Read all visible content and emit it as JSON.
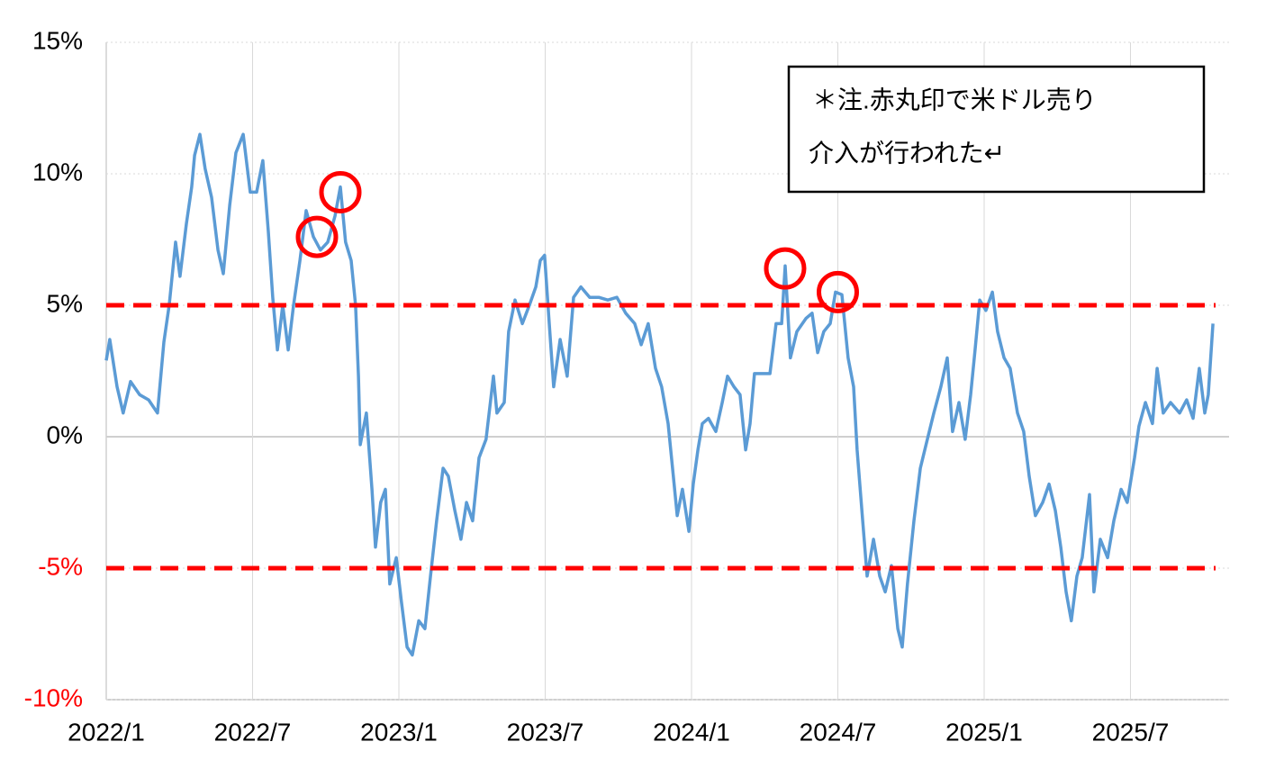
{
  "chart_data": {
    "type": "line",
    "color": "#5b9bd5",
    "x": [
      2022.0,
      2022.012,
      2022.037,
      2022.058,
      2022.083,
      2022.114,
      2022.145,
      2022.175,
      2022.197,
      2022.215,
      2022.237,
      2022.252,
      2022.274,
      2022.292,
      2022.302,
      2022.32,
      2022.338,
      2022.36,
      2022.382,
      2022.4,
      2022.422,
      2022.443,
      2022.468,
      2022.492,
      2022.514,
      2022.535,
      2022.554,
      2022.569,
      2022.585,
      2022.603,
      2022.622,
      2022.64,
      2022.662,
      2022.683,
      2022.708,
      2022.732,
      2022.757,
      2022.782,
      2022.8,
      2022.818,
      2022.837,
      2022.852,
      2022.862,
      2022.868,
      2022.889,
      2022.908,
      2022.92,
      2022.938,
      2022.954,
      2022.969,
      2022.991,
      2023.009,
      2023.028,
      2023.046,
      2023.068,
      2023.089,
      2023.108,
      2023.129,
      2023.151,
      2023.169,
      2023.191,
      2023.212,
      2023.231,
      2023.252,
      2023.274,
      2023.298,
      2023.323,
      2023.335,
      2023.36,
      2023.375,
      2023.397,
      2023.422,
      2023.446,
      2023.468,
      2023.483,
      2023.498,
      2023.514,
      2023.529,
      2023.551,
      2023.575,
      2023.597,
      2023.622,
      2023.652,
      2023.683,
      2023.714,
      2023.745,
      2023.775,
      2023.806,
      2023.828,
      2023.852,
      2023.877,
      2023.898,
      2023.92,
      2023.938,
      2023.951,
      2023.969,
      2023.991,
      2024.006,
      2024.022,
      2024.037,
      2024.058,
      2024.083,
      2024.105,
      2024.123,
      2024.145,
      2024.166,
      2024.185,
      2024.2,
      2024.215,
      2024.237,
      2024.268,
      2024.289,
      2024.308,
      2024.32,
      2024.338,
      2024.36,
      2024.391,
      2024.412,
      2024.431,
      2024.452,
      2024.474,
      2024.492,
      2024.514,
      2024.535,
      2024.554,
      2024.566,
      2024.585,
      2024.6,
      2024.622,
      2024.643,
      2024.662,
      2024.683,
      2024.705,
      2024.72,
      2024.738,
      2024.76,
      2024.782,
      2024.806,
      2024.828,
      2024.852,
      2024.874,
      2024.892,
      2024.914,
      2024.935,
      2024.954,
      2024.969,
      2024.985,
      2025.006,
      2025.028,
      2025.046,
      2025.068,
      2025.089,
      2025.114,
      2025.135,
      2025.154,
      2025.175,
      2025.2,
      2025.222,
      2025.243,
      2025.262,
      2025.28,
      2025.298,
      2025.317,
      2025.335,
      2025.36,
      2025.375,
      2025.397,
      2025.422,
      2025.443,
      2025.468,
      2025.489,
      2025.514,
      2025.529,
      2025.551,
      2025.575,
      2025.591,
      2025.612,
      2025.637,
      2025.668,
      2025.692,
      2025.714,
      2025.735,
      2025.754,
      2025.766,
      2025.782
    ],
    "values": [
      2.9,
      3.7,
      1.9,
      0.9,
      2.1,
      1.6,
      1.4,
      0.9,
      3.6,
      5.0,
      7.4,
      6.1,
      8.1,
      9.5,
      10.7,
      11.5,
      10.2,
      9.1,
      7.1,
      6.2,
      8.8,
      10.8,
      11.5,
      9.3,
      9.3,
      10.5,
      7.8,
      5.3,
      3.3,
      5.0,
      3.3,
      5.0,
      6.7,
      8.6,
      7.6,
      7.1,
      7.4,
      8.4,
      9.5,
      7.4,
      6.7,
      5.0,
      2.3,
      -0.3,
      0.9,
      -2.0,
      -4.2,
      -2.5,
      -2.0,
      -5.6,
      -4.6,
      -6.3,
      -8.0,
      -8.3,
      -7.0,
      -7.3,
      -5.3,
      -3.2,
      -1.2,
      -1.5,
      -2.8,
      -3.9,
      -2.5,
      -3.2,
      -0.8,
      -0.1,
      2.3,
      0.9,
      1.3,
      4.0,
      5.2,
      4.3,
      5.0,
      5.7,
      6.7,
      6.9,
      4.3,
      1.9,
      3.7,
      2.3,
      5.3,
      5.7,
      5.3,
      5.3,
      5.2,
      5.3,
      4.7,
      4.3,
      3.5,
      4.3,
      2.6,
      1.9,
      0.5,
      -1.5,
      -3.0,
      -2.0,
      -3.6,
      -1.8,
      -0.5,
      0.5,
      0.7,
      0.2,
      1.3,
      2.3,
      1.9,
      1.6,
      -0.5,
      0.5,
      2.4,
      2.4,
      2.4,
      4.3,
      4.3,
      6.5,
      3.0,
      4.0,
      4.5,
      4.7,
      3.2,
      4.0,
      4.3,
      5.5,
      5.4,
      3.0,
      1.9,
      -0.5,
      -3.2,
      -5.3,
      -3.9,
      -5.3,
      -5.9,
      -4.9,
      -7.3,
      -8.0,
      -5.6,
      -3.2,
      -1.2,
      -0.1,
      0.9,
      1.9,
      3.0,
      0.2,
      1.3,
      -0.1,
      1.6,
      3.3,
      5.2,
      4.8,
      5.5,
      4.0,
      3.0,
      2.6,
      0.9,
      0.2,
      -1.5,
      -3.0,
      -2.5,
      -1.8,
      -2.8,
      -4.2,
      -5.9,
      -7.0,
      -5.3,
      -4.6,
      -2.2,
      -5.9,
      -3.9,
      -4.6,
      -3.2,
      -2.0,
      -2.5,
      -0.8,
      0.4,
      1.3,
      0.5,
      2.6,
      0.9,
      1.3,
      0.9,
      1.4,
      0.7,
      2.6,
      0.9,
      1.6,
      4.3
    ],
    "xlim": [
      2022.0,
      2025.837
    ],
    "xticks": [
      {
        "value": 2022.0,
        "label": "2022/1"
      },
      {
        "value": 2022.5,
        "label": "2022/7"
      },
      {
        "value": 2023.0,
        "label": "2023/1"
      },
      {
        "value": 2023.5,
        "label": "2023/7"
      },
      {
        "value": 2024.0,
        "label": "2024/1"
      },
      {
        "value": 2024.5,
        "label": "2024/7"
      },
      {
        "value": 2025.0,
        "label": "2025/1"
      },
      {
        "value": 2025.5,
        "label": "2025/7"
      }
    ],
    "ylim": [
      -10,
      15
    ],
    "yticks": [
      {
        "value": -10,
        "label": "-10%"
      },
      {
        "value": -5,
        "label": "-5%"
      },
      {
        "value": 0,
        "label": "0%"
      },
      {
        "value": 5,
        "label": "5%"
      },
      {
        "value": 10,
        "label": "10%"
      },
      {
        "value": 15,
        "label": "15%"
      }
    ],
    "grid": true,
    "negative_tick_color": "#ff0000",
    "reference_lines": {
      "values": [
        5,
        -5
      ],
      "color": "#ff0000"
    },
    "markers": {
      "color": "#ff0000",
      "x": [
        2022.72,
        2022.8,
        2024.32,
        2024.5
      ],
      "values": [
        7.6,
        9.3,
        6.4,
        5.5
      ]
    },
    "annotation": [
      "＊注.赤丸印で米ドル売り",
      "介入が行われた↵"
    ]
  }
}
